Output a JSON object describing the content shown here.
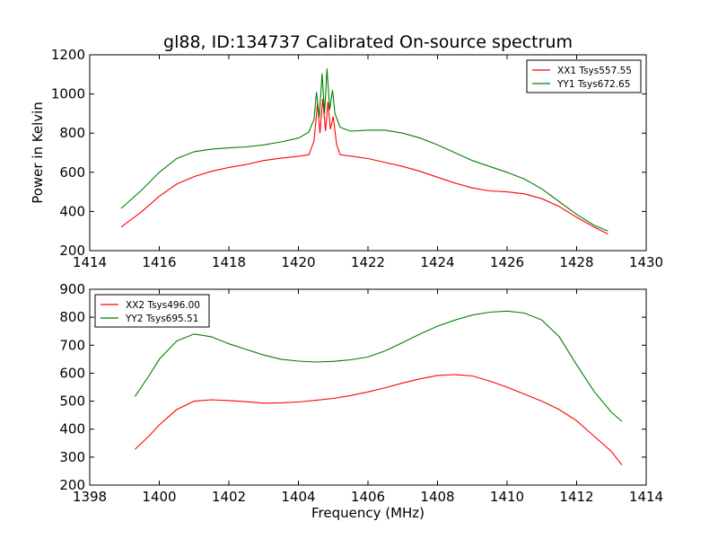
{
  "title": "gl88, ID:134737 Calibrated On-source spectrum",
  "chart_data": [
    {
      "type": "line",
      "xlim": [
        1414,
        1430
      ],
      "ylim": [
        200,
        1200
      ],
      "xticks": [
        1414,
        1416,
        1418,
        1420,
        1422,
        1424,
        1426,
        1428,
        1430
      ],
      "yticks": [
        200,
        400,
        600,
        800,
        1000,
        1200
      ],
      "xlabel": "",
      "ylabel": "Power in Kelvin",
      "legend": "top-right",
      "series": [
        {
          "name": "XX1 Tsys557.55",
          "color": "#ff0000",
          "x": [
            1414.9,
            1415.5,
            1416.0,
            1416.5,
            1417.0,
            1417.5,
            1418.0,
            1418.5,
            1419.0,
            1419.5,
            1420.0,
            1420.3,
            1420.45,
            1420.55,
            1420.62,
            1420.7,
            1420.78,
            1420.85,
            1420.92,
            1421.0,
            1421.1,
            1421.2,
            1422.0,
            1422.5,
            1423.0,
            1423.5,
            1424.0,
            1424.5,
            1425.0,
            1425.5,
            1426.0,
            1426.5,
            1427.0,
            1427.5,
            1428.0,
            1428.5,
            1428.9
          ],
          "y": [
            320,
            400,
            478,
            540,
            578,
            605,
            625,
            640,
            660,
            672,
            682,
            690,
            760,
            955,
            800,
            975,
            810,
            960,
            820,
            885,
            740,
            690,
            670,
            650,
            630,
            605,
            575,
            545,
            520,
            505,
            500,
            490,
            465,
            425,
            370,
            320,
            285
          ]
        },
        {
          "name": "YY1 Tsys672.65",
          "color": "#008000",
          "x": [
            1414.9,
            1415.5,
            1416.0,
            1416.5,
            1417.0,
            1417.5,
            1418.0,
            1418.5,
            1419.0,
            1419.5,
            1420.0,
            1420.3,
            1420.45,
            1420.52,
            1420.6,
            1420.68,
            1420.75,
            1420.82,
            1420.9,
            1420.98,
            1421.05,
            1421.2,
            1421.5,
            1422.0,
            1422.5,
            1423.0,
            1423.5,
            1424.0,
            1424.5,
            1425.0,
            1425.5,
            1426.0,
            1426.5,
            1427.0,
            1427.5,
            1428.0,
            1428.5,
            1428.9
          ],
          "y": [
            415,
            510,
            600,
            670,
            705,
            718,
            725,
            730,
            740,
            755,
            775,
            805,
            870,
            1010,
            880,
            1105,
            900,
            1130,
            920,
            1020,
            900,
            830,
            810,
            815,
            815,
            800,
            775,
            740,
            700,
            660,
            630,
            600,
            565,
            515,
            450,
            385,
            330,
            300
          ]
        }
      ]
    },
    {
      "type": "line",
      "xlim": [
        1398,
        1414
      ],
      "ylim": [
        200,
        900
      ],
      "xticks": [
        1398,
        1400,
        1402,
        1404,
        1406,
        1408,
        1410,
        1412,
        1414
      ],
      "yticks": [
        200,
        300,
        400,
        500,
        600,
        700,
        800,
        900
      ],
      "xlabel": "Frequency (MHz)",
      "ylabel": "",
      "legend": "top-left",
      "series": [
        {
          "name": "XX2 Tsys496.00",
          "color": "#ff0000",
          "x": [
            1399.3,
            1399.7,
            1400.0,
            1400.5,
            1401.0,
            1401.5,
            1402.0,
            1402.5,
            1403.0,
            1403.5,
            1404.0,
            1404.5,
            1405.0,
            1405.5,
            1406.0,
            1406.5,
            1407.0,
            1407.5,
            1408.0,
            1408.5,
            1409.0,
            1409.5,
            1410.0,
            1410.5,
            1411.0,
            1411.5,
            1412.0,
            1412.5,
            1413.0,
            1413.3
          ],
          "y": [
            328,
            375,
            415,
            470,
            500,
            505,
            502,
            498,
            493,
            494,
            497,
            503,
            510,
            520,
            533,
            548,
            565,
            580,
            592,
            595,
            590,
            572,
            550,
            525,
            500,
            470,
            430,
            375,
            320,
            272
          ]
        },
        {
          "name": "YY2 Tsys695.51",
          "color": "#008000",
          "x": [
            1399.3,
            1399.7,
            1400.0,
            1400.5,
            1401.0,
            1401.5,
            1402.0,
            1402.5,
            1403.0,
            1403.5,
            1404.0,
            1404.5,
            1405.0,
            1405.5,
            1406.0,
            1406.5,
            1407.0,
            1407.5,
            1408.0,
            1408.5,
            1409.0,
            1409.5,
            1410.0,
            1410.5,
            1411.0,
            1411.5,
            1412.0,
            1412.5,
            1413.0,
            1413.3
          ],
          "y": [
            517,
            590,
            650,
            715,
            740,
            730,
            705,
            685,
            665,
            650,
            643,
            640,
            642,
            648,
            658,
            680,
            710,
            740,
            768,
            790,
            808,
            818,
            822,
            815,
            790,
            730,
            630,
            535,
            460,
            428
          ]
        }
      ]
    }
  ]
}
